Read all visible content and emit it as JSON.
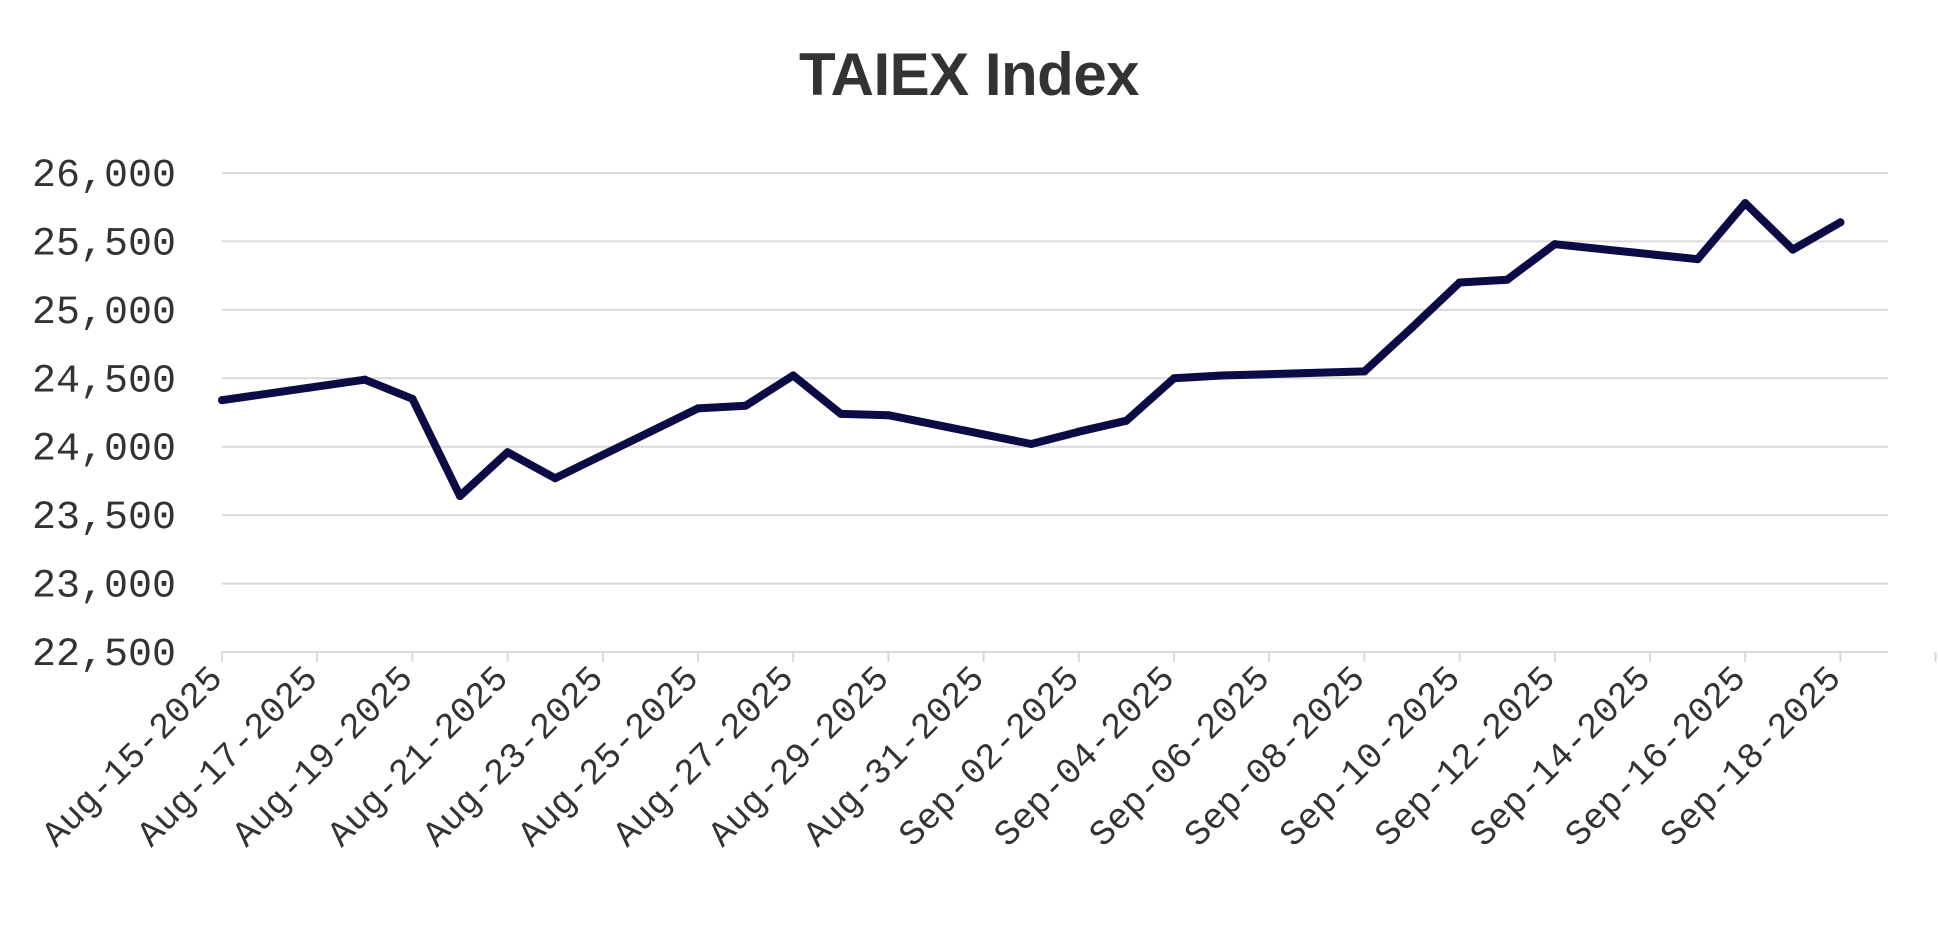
{
  "chart_data": {
    "type": "line",
    "title": "TAIEX Index",
    "xlabel": "",
    "ylabel": "",
    "ylim": [
      22500,
      26000
    ],
    "yticks": [
      22500,
      23000,
      23500,
      24000,
      24500,
      25000,
      25500,
      26000
    ],
    "ytick_labels": [
      "22,500",
      "23,000",
      "23,500",
      "24,000",
      "24,500",
      "25,000",
      "25,500",
      "26,000"
    ],
    "xtick_labels": [
      "Aug-15-2025",
      "Aug-17-2025",
      "Aug-19-2025",
      "Aug-21-2025",
      "Aug-23-2025",
      "Aug-25-2025",
      "Aug-27-2025",
      "Aug-29-2025",
      "Aug-31-2025",
      "Sep-02-2025",
      "Sep-04-2025",
      "Sep-06-2025",
      "Sep-08-2025",
      "Sep-10-2025",
      "Sep-12-2025",
      "Sep-14-2025",
      "Sep-16-2025",
      "Sep-18-2025"
    ],
    "xlim": [
      "2025-08-15",
      "2025-09-19"
    ],
    "grid": "horizontal",
    "line_color": "#0b0c45",
    "grid_color": "#d9d9d9",
    "series": [
      {
        "x": [
          "2025-08-15",
          "2025-08-18",
          "2025-08-19",
          "2025-08-20",
          "2025-08-21",
          "2025-08-22",
          "2025-08-25",
          "2025-08-26",
          "2025-08-27",
          "2025-08-28",
          "2025-08-29",
          "2025-09-01",
          "2025-09-02",
          "2025-09-03",
          "2025-09-04",
          "2025-09-05",
          "2025-09-08",
          "2025-09-09",
          "2025-09-10",
          "2025-09-11",
          "2025-09-12",
          "2025-09-15",
          "2025-09-16",
          "2025-09-17",
          "2025-09-18"
        ],
        "values": [
          24340,
          24490,
          24350,
          23640,
          23960,
          23770,
          24280,
          24300,
          24520,
          24240,
          24230,
          24020,
          24110,
          24190,
          24500,
          24520,
          24550,
          24870,
          25200,
          25220,
          25480,
          25370,
          25780,
          25440,
          25640
        ]
      }
    ]
  }
}
